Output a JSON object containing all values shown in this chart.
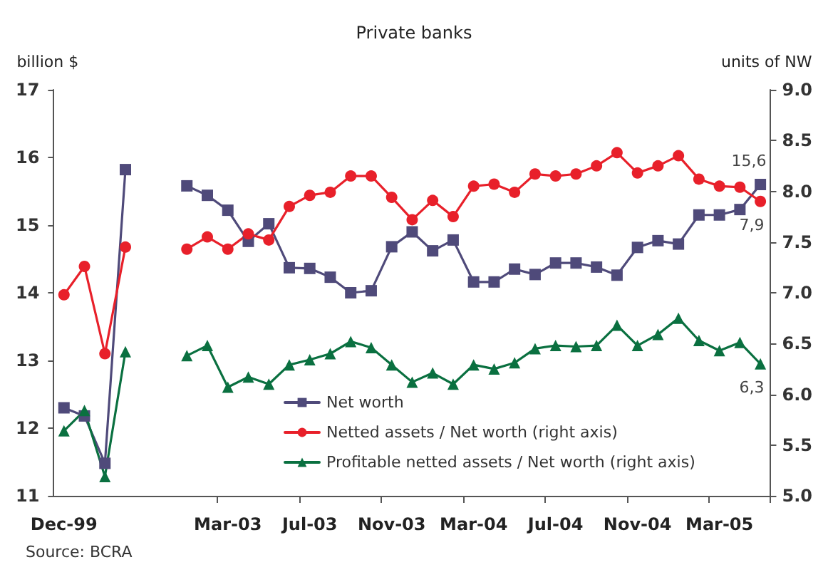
{
  "chart_data": {
    "type": "line",
    "title": "Private banks",
    "ylabel": "billion $",
    "y2label": "units of NW",
    "categories": [
      "Dec-99",
      null,
      null,
      null,
      null,
      null,
      null,
      null,
      "Mar-03",
      null,
      null,
      null,
      "Jul-03",
      null,
      null,
      null,
      "Nov-03",
      null,
      null,
      null,
      "Mar-04",
      null,
      null,
      null,
      "Jul-04",
      null,
      null,
      null,
      "Nov-04",
      null,
      null,
      null,
      "Mar-05",
      null,
      null
    ],
    "series": [
      {
        "name": "Net worth",
        "color": "#4f4a7a",
        "marker": "square",
        "values": [
          12.3,
          12.18,
          11.48,
          15.82,
          null,
          null,
          15.58,
          15.44,
          15.22,
          14.76,
          15.02,
          14.37,
          14.36,
          14.23,
          14.0,
          14.03,
          14.68,
          14.9,
          14.62,
          14.78,
          14.16,
          14.16,
          14.35,
          14.27,
          14.44,
          14.44,
          14.38,
          14.26,
          14.67,
          14.77,
          14.72,
          15.15,
          15.15,
          15.23,
          15.6
        ],
        "value_labels": [
          null,
          null,
          null,
          null,
          null,
          null,
          null,
          null,
          null,
          null,
          null,
          null,
          null,
          null,
          null,
          null,
          null,
          null,
          null,
          null,
          null,
          null,
          null,
          null,
          null,
          null,
          null,
          null,
          null,
          null,
          null,
          null,
          null,
          null,
          "15,6"
        ]
      },
      {
        "name": "Netted assets / Net worth (right axis)",
        "color": "#e8202a",
        "marker": "circle",
        "axis": "y2",
        "values": [
          6.98,
          7.26,
          6.4,
          7.45,
          null,
          null,
          7.43,
          7.55,
          7.43,
          7.58,
          7.52,
          7.85,
          7.96,
          7.99,
          8.15,
          8.15,
          7.94,
          7.72,
          7.91,
          7.75,
          8.05,
          8.07,
          7.99,
          8.17,
          8.15,
          8.17,
          8.25,
          8.38,
          8.18,
          8.25,
          8.35,
          8.12,
          8.05,
          8.04,
          7.9
        ],
        "value_labels": [
          null,
          null,
          null,
          null,
          null,
          null,
          null,
          null,
          null,
          null,
          null,
          null,
          null,
          null,
          null,
          null,
          null,
          null,
          null,
          null,
          null,
          null,
          null,
          null,
          null,
          null,
          null,
          null,
          null,
          null,
          null,
          null,
          null,
          null,
          "7,9"
        ]
      },
      {
        "name": "Profitable netted assets / Net worth (right axis)",
        "color": "#0a7040",
        "marker": "triangle",
        "axis": "y2",
        "values": [
          5.64,
          5.84,
          5.19,
          6.42,
          null,
          null,
          6.38,
          6.48,
          6.07,
          6.17,
          6.1,
          6.29,
          6.34,
          6.4,
          6.52,
          6.46,
          6.29,
          6.12,
          6.21,
          6.1,
          6.29,
          6.25,
          6.31,
          6.45,
          6.48,
          6.47,
          6.48,
          6.68,
          6.48,
          6.59,
          6.75,
          6.53,
          6.43,
          6.51,
          6.3
        ],
        "value_labels": [
          null,
          null,
          null,
          null,
          null,
          null,
          null,
          null,
          null,
          null,
          null,
          null,
          null,
          null,
          null,
          null,
          null,
          null,
          null,
          null,
          null,
          null,
          null,
          null,
          null,
          null,
          null,
          null,
          null,
          null,
          null,
          null,
          null,
          null,
          "6,3"
        ]
      }
    ],
    "ylim": [
      11,
      17
    ],
    "yticks": [
      11,
      12,
      13,
      14,
      15,
      16,
      17
    ],
    "y2lim": [
      5,
      9
    ],
    "y2ticks": [
      {
        "value": 5,
        "label": "5.0"
      },
      {
        "value": 5.5,
        "label": "5.5"
      },
      {
        "value": 6,
        "label": "6.0"
      },
      {
        "value": 6.5,
        "label": "6.5"
      },
      {
        "value": 7,
        "label": "7.0"
      },
      {
        "value": 7.5,
        "label": "7.5"
      },
      {
        "value": 8,
        "label": "8.0"
      },
      {
        "value": 8.5,
        "label": "8.5"
      },
      {
        "value": 9,
        "label": "9.0"
      }
    ],
    "grid": false,
    "legend": "bottom",
    "line_style": "solid",
    "annotations": [
      "Source: BCRA"
    ]
  }
}
